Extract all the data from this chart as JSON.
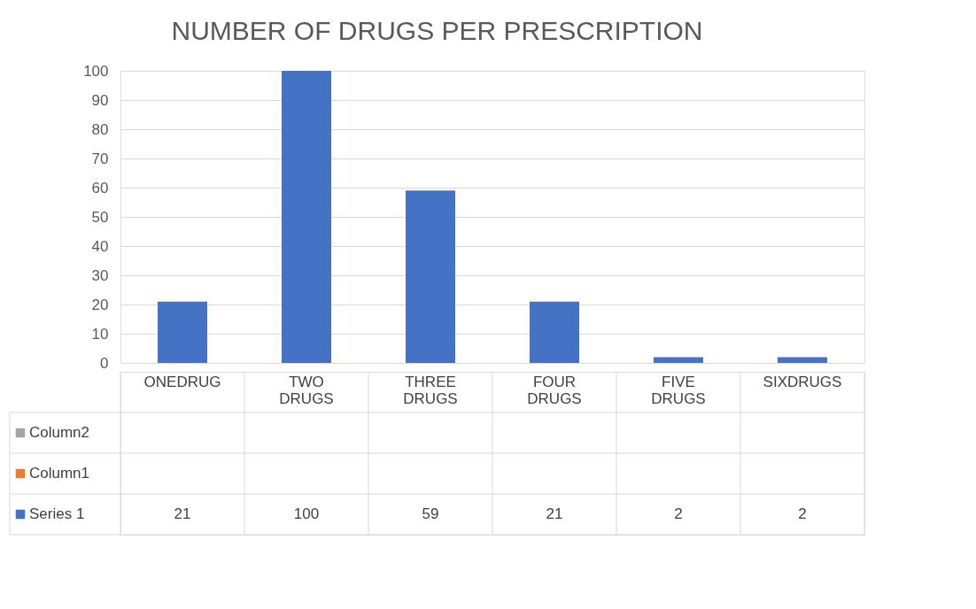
{
  "chart_data": {
    "type": "bar",
    "title": "NUMBER OF DRUGS PER PRESCRIPTION",
    "categories": [
      "ONEDRUG",
      "TWO DRUGS",
      "THREE DRUGS",
      "FOUR DRUGS",
      "FIVE DRUGS",
      "SIXDRUGS"
    ],
    "series": [
      {
        "name": "Column2",
        "color": "#a5a5a5",
        "values": [
          null,
          null,
          null,
          null,
          null,
          null
        ]
      },
      {
        "name": "Column1",
        "color": "#ed7d31",
        "values": [
          null,
          null,
          null,
          null,
          null,
          null
        ]
      },
      {
        "name": "Series 1",
        "color": "#4472c4",
        "values": [
          21,
          100,
          59,
          21,
          2,
          2
        ]
      }
    ],
    "ylim": [
      0,
      100
    ],
    "yticks": [
      0,
      10,
      20,
      30,
      40,
      50,
      60,
      70,
      80,
      90,
      100
    ],
    "grid": "y",
    "legend": "bottom",
    "data_labels": true
  }
}
